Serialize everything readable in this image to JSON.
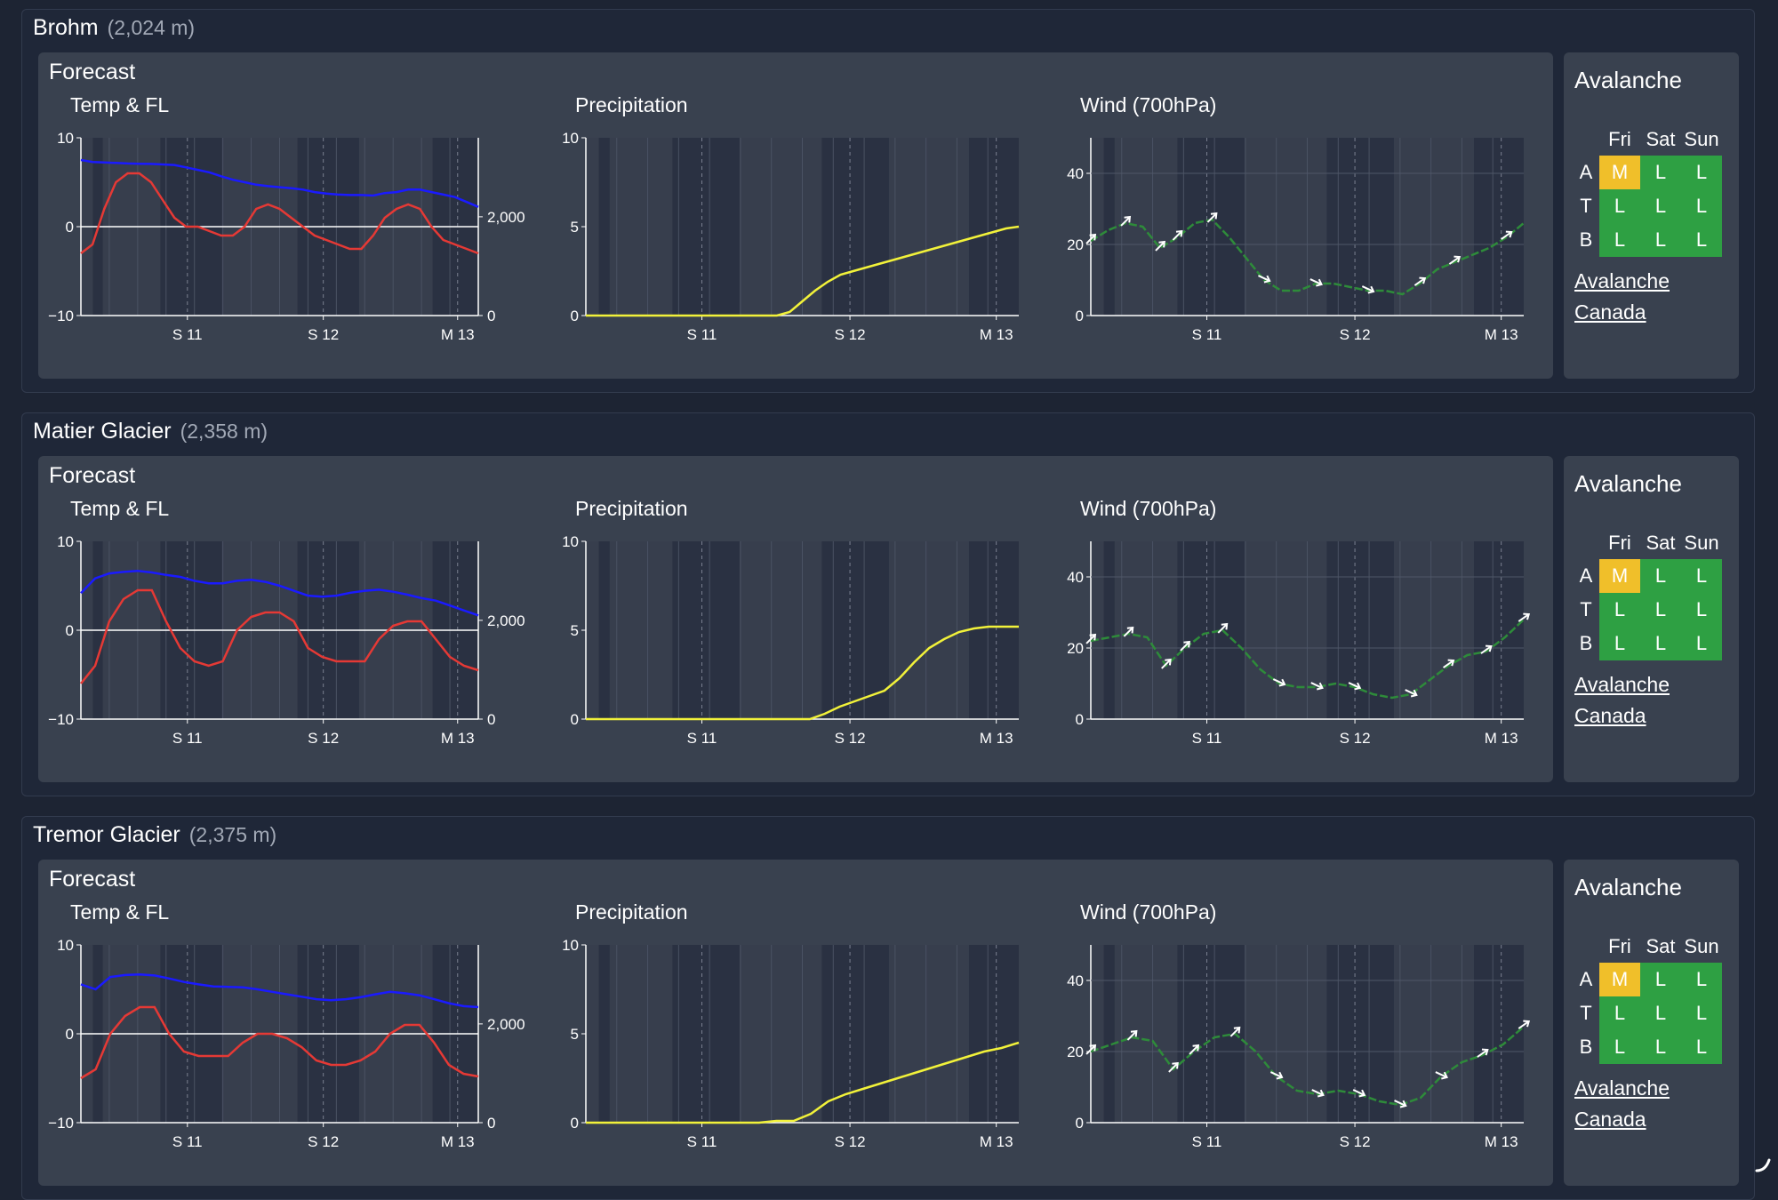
{
  "colors": {
    "temp": "#e53935",
    "freezing_level": "#1a1aff",
    "precip": "#f2f23a",
    "wind": "#2e8b3a",
    "rating_L": "#2ea043",
    "rating_M": "#f0bf2a"
  },
  "labels": {
    "forecast": "Forecast",
    "temp_title": "Temp & FL",
    "precip_title": "Precipitation",
    "wind_title": "Wind (700hPa)",
    "avalanche": "Avalanche",
    "avalanche_link_line1": "Avalanche",
    "avalanche_link_line2": "Canada",
    "day_headers": [
      "Fri",
      "Sat",
      "Sun"
    ],
    "row_labels": [
      "A",
      "T",
      "B"
    ],
    "x_ticks": [
      "S 11",
      "S 12",
      "M 13"
    ]
  },
  "stations": [
    {
      "name": "Brohm",
      "elevation": "(2,024 m)",
      "avalanche": [
        [
          "M",
          "L",
          "L"
        ],
        [
          "L",
          "L",
          "L"
        ],
        [
          "L",
          "L",
          "L"
        ]
      ],
      "chart_data": {
        "temp": {
          "type": "line",
          "title": "Temp & FL",
          "x_ticks": [
            "S 11",
            "S 12",
            "M 13"
          ],
          "y_left": {
            "ticks": [
              "10",
              "0",
              "−10"
            ],
            "range": [
              -10,
              10
            ]
          },
          "y_right": {
            "ticks": [
              "0",
              "2,000"
            ],
            "range": [
              0,
              3600
            ]
          },
          "temp_series": [
            -3,
            -2,
            2,
            5,
            6,
            6,
            5,
            3,
            1,
            0,
            0,
            -0.5,
            -1,
            -1,
            0,
            2,
            2.5,
            2,
            1,
            0,
            -1,
            -1.5,
            -2,
            -2.5,
            -2.5,
            -1,
            1,
            2,
            2.5,
            2,
            0,
            -1.5,
            -2,
            -2.5,
            -3
          ],
          "fl_series": [
            3150,
            3110,
            3100,
            3090,
            3080,
            3075,
            3070,
            3060,
            3050,
            3000,
            2950,
            2900,
            2820,
            2750,
            2700,
            2650,
            2620,
            2600,
            2580,
            2550,
            2500,
            2470,
            2450,
            2440,
            2440,
            2430,
            2480,
            2500,
            2550,
            2550,
            2500,
            2450,
            2400,
            2300,
            2200
          ]
        },
        "precip": {
          "type": "line",
          "title": "Precipitation",
          "x_ticks": [
            "S 11",
            "S 12",
            "M 13"
          ],
          "y_ticks": [
            "10",
            "5",
            "0"
          ],
          "range": [
            0,
            10
          ],
          "series": [
            0,
            0,
            0,
            0,
            0,
            0,
            0,
            0,
            0,
            0,
            0,
            0,
            0,
            0,
            0,
            0,
            0.2,
            0.8,
            1.4,
            1.9,
            2.3,
            2.5,
            2.7,
            2.9,
            3.1,
            3.3,
            3.5,
            3.7,
            3.9,
            4.1,
            4.3,
            4.5,
            4.7,
            4.9,
            5.0
          ]
        },
        "wind": {
          "type": "line",
          "title": "Wind (700hPa)",
          "x_ticks": [
            "S 11",
            "S 12",
            "M 13"
          ],
          "y_ticks": [
            "40",
            "20",
            "0"
          ],
          "range": [
            0,
            50
          ],
          "series": [
            21,
            24,
            26,
            25,
            19,
            22,
            26,
            27,
            22,
            16,
            10,
            7,
            7,
            9,
            9,
            8,
            7,
            7,
            6,
            9,
            13,
            15,
            17,
            19,
            22,
            26
          ],
          "arrows_at": [
            0,
            2,
            4,
            5,
            7,
            10,
            13,
            16,
            19,
            21,
            24
          ]
        }
      }
    },
    {
      "name": "Matier Glacier",
      "elevation": "(2,358 m)",
      "avalanche": [
        [
          "M",
          "L",
          "L"
        ],
        [
          "L",
          "L",
          "L"
        ],
        [
          "L",
          "L",
          "L"
        ]
      ],
      "chart_data": {
        "temp": {
          "type": "line",
          "title": "Temp & FL",
          "x_ticks": [
            "S 11",
            "S 12",
            "M 13"
          ],
          "y_left": {
            "ticks": [
              "10",
              "0",
              "−10"
            ],
            "range": [
              -10,
              10
            ]
          },
          "y_right": {
            "ticks": [
              "0",
              "2,000"
            ],
            "range": [
              0,
              3600
            ]
          },
          "temp_series": [
            -6,
            -4,
            1,
            3.5,
            4.5,
            4.5,
            1,
            -2,
            -3.5,
            -4,
            -3.5,
            0,
            1.5,
            2,
            2,
            1,
            -2,
            -3,
            -3.5,
            -3.5,
            -3.5,
            -1,
            0.5,
            1,
            1,
            -1,
            -3,
            -4,
            -4.5
          ],
          "fl_series": [
            2550,
            2850,
            2950,
            2980,
            3000,
            2970,
            2920,
            2880,
            2800,
            2750,
            2750,
            2800,
            2820,
            2780,
            2700,
            2600,
            2500,
            2480,
            2500,
            2560,
            2600,
            2620,
            2580,
            2520,
            2450,
            2400,
            2300,
            2200,
            2100
          ]
        },
        "precip": {
          "type": "line",
          "title": "Precipitation",
          "x_ticks": [
            "S 11",
            "S 12",
            "M 13"
          ],
          "y_ticks": [
            "10",
            "5",
            "0"
          ],
          "range": [
            0,
            10
          ],
          "series": [
            0,
            0,
            0,
            0,
            0,
            0,
            0,
            0,
            0,
            0,
            0,
            0,
            0,
            0,
            0,
            0,
            0.3,
            0.7,
            1.0,
            1.3,
            1.6,
            2.3,
            3.2,
            4.0,
            4.5,
            4.9,
            5.1,
            5.2,
            5.2,
            5.2
          ]
        },
        "wind": {
          "type": "line",
          "title": "Wind (700hPa)",
          "x_ticks": [
            "S 11",
            "S 12",
            "M 13"
          ],
          "y_ticks": [
            "40",
            "20",
            "0"
          ],
          "range": [
            0,
            50
          ],
          "series": [
            22,
            23,
            24,
            23,
            15,
            20,
            24,
            25,
            20,
            14,
            10,
            9,
            9,
            10,
            9,
            7,
            6,
            7,
            11,
            15,
            18,
            19,
            23,
            28
          ],
          "arrows_at": [
            0,
            2,
            4,
            5,
            7,
            10,
            12,
            14,
            17,
            19,
            21,
            23
          ]
        }
      }
    },
    {
      "name": "Tremor Glacier",
      "elevation": "(2,375 m)",
      "avalanche": [
        [
          "M",
          "L",
          "L"
        ],
        [
          "L",
          "L",
          "L"
        ],
        [
          "L",
          "L",
          "L"
        ]
      ],
      "chart_data": {
        "temp": {
          "type": "line",
          "title": "Temp & FL",
          "x_ticks": [
            "S 11",
            "S 12",
            "M 13"
          ],
          "y_left": {
            "ticks": [
              "10",
              "0",
              "−10"
            ],
            "range": [
              -10,
              10
            ]
          },
          "y_right": {
            "ticks": [
              "0",
              "2,000"
            ],
            "range": [
              0,
              3600
            ]
          },
          "temp_series": [
            -5,
            -4,
            0,
            2,
            3,
            3,
            0,
            -2,
            -2.5,
            -2.5,
            -2.5,
            -1,
            0,
            0,
            -0.5,
            -1.5,
            -3,
            -3.5,
            -3.5,
            -3,
            -2,
            0,
            1,
            1,
            -1,
            -3.5,
            -4.5,
            -4.8
          ],
          "fl_series": [
            2800,
            2700,
            2950,
            2990,
            3000,
            2980,
            2920,
            2850,
            2800,
            2760,
            2750,
            2740,
            2700,
            2650,
            2600,
            2550,
            2500,
            2480,
            2500,
            2540,
            2600,
            2650,
            2620,
            2580,
            2500,
            2420,
            2360,
            2340
          ]
        },
        "precip": {
          "type": "line",
          "title": "Precipitation",
          "x_ticks": [
            "S 11",
            "S 12",
            "M 13"
          ],
          "y_ticks": [
            "10",
            "5",
            "0"
          ],
          "range": [
            0,
            10
          ],
          "series": [
            0,
            0,
            0,
            0,
            0,
            0,
            0,
            0,
            0,
            0,
            0,
            0.1,
            0.1,
            0.5,
            1.2,
            1.6,
            1.9,
            2.2,
            2.5,
            2.8,
            3.1,
            3.4,
            3.7,
            4.0,
            4.2,
            4.5
          ]
        },
        "wind": {
          "type": "line",
          "title": "Wind (700hPa)",
          "x_ticks": [
            "S 11",
            "S 12",
            "M 13"
          ],
          "y_ticks": [
            "40",
            "20",
            "0"
          ],
          "range": [
            0,
            50
          ],
          "series": [
            20,
            22,
            24,
            23,
            15,
            20,
            24,
            25,
            20,
            13,
            9,
            8,
            9,
            8,
            6,
            5,
            7,
            13,
            17,
            19,
            22,
            27
          ],
          "arrows_at": [
            0,
            2,
            4,
            5,
            7,
            9,
            11,
            13,
            15,
            17,
            19,
            21
          ]
        }
      }
    }
  ]
}
